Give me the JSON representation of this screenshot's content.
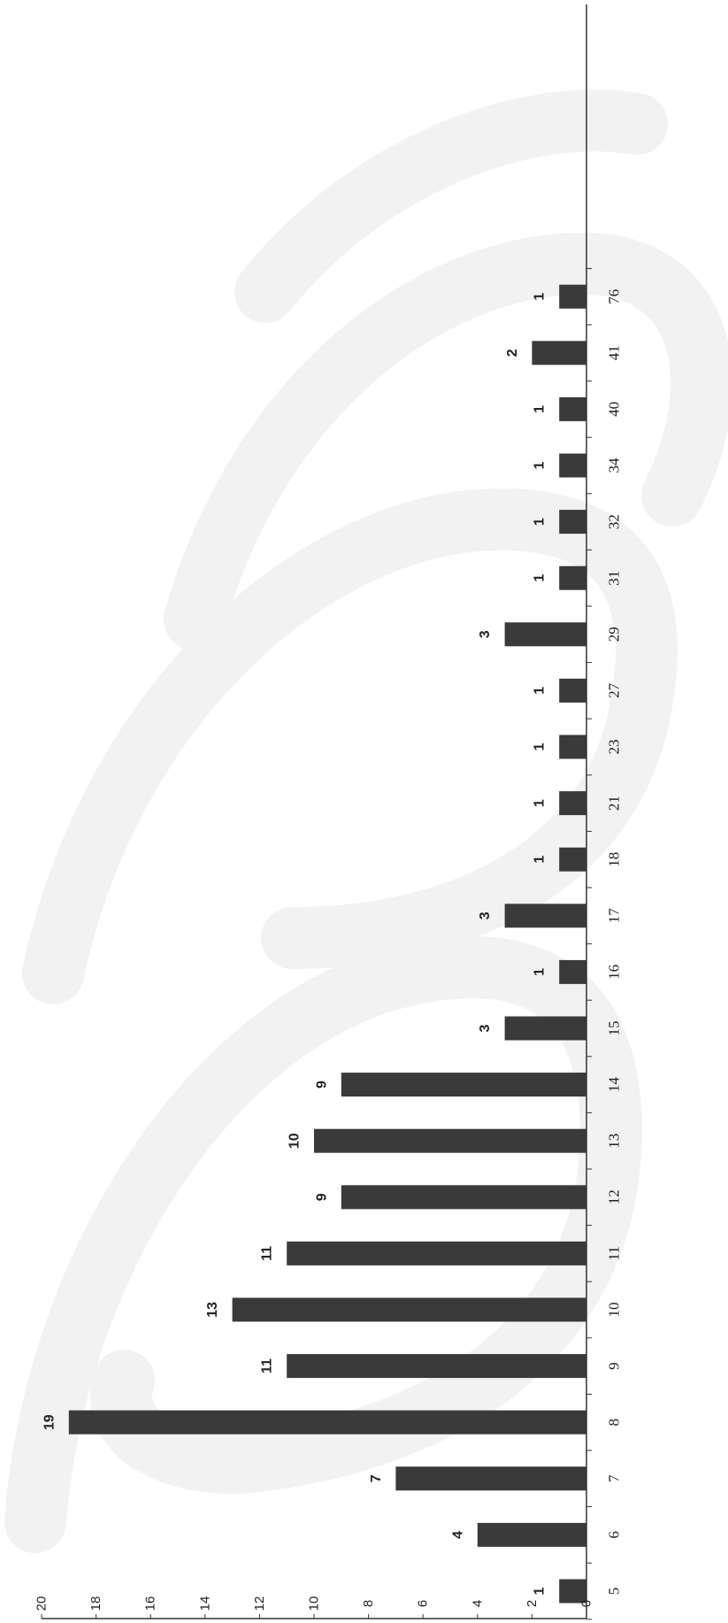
{
  "chart_data": {
    "type": "bar",
    "orientation": "rotated-90",
    "categories": [
      "5",
      "6",
      "7",
      "8",
      "9",
      "10",
      "11",
      "12",
      "13",
      "14",
      "15",
      "16",
      "17",
      "18",
      "21",
      "23",
      "27",
      "29",
      "31",
      "32",
      "34",
      "40",
      "41",
      "76"
    ],
    "values": [
      1,
      4,
      7,
      19,
      11,
      13,
      11,
      9,
      10,
      9,
      3,
      1,
      3,
      1,
      1,
      1,
      1,
      3,
      1,
      1,
      1,
      1,
      2,
      1
    ],
    "data_labels": [
      "1",
      "4",
      "7",
      "19",
      "11",
      "13",
      "11",
      "9",
      "10",
      "9",
      "3",
      "1",
      "3",
      "1",
      "1",
      "1",
      "1",
      "3",
      "1",
      "1",
      "1",
      "1",
      "2",
      "1"
    ],
    "title": "",
    "xlabel": "",
    "ylabel": "",
    "ylim": [
      0,
      20
    ],
    "yticks": [
      "0",
      "2",
      "4",
      "6",
      "8",
      "10",
      "12",
      "14",
      "16",
      "18",
      "20"
    ],
    "grid": false,
    "colors": {
      "bar": "#3a3a3a",
      "axis": "#333333",
      "watermark": "#f2f2f2"
    }
  }
}
